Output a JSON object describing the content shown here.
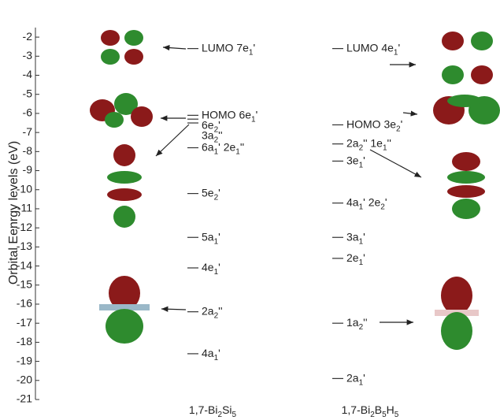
{
  "chart_data": {
    "type": "levels",
    "y_label": "Orbital Eenrgy levels (eV)",
    "ylim": [
      -21,
      -1.5
    ],
    "yticks": [
      -2,
      -3,
      -4,
      -5,
      -6,
      -7,
      -8,
      -9,
      -10,
      -11,
      -12,
      -13,
      -14,
      -15,
      -16,
      -17,
      -18,
      -19,
      -20,
      -21
    ],
    "columns": [
      {
        "name": [
          "1,7-Bi",
          {
            "sub": "2"
          },
          "Si",
          {
            "sub": "5"
          }
        ],
        "levels": [
          {
            "value": -2.6,
            "label": [
              "LUMO 7e",
              {
                "sub": "1"
              },
              "'"
            ]
          },
          {
            "value": -6.1,
            "label": [
              "HOMO 6e",
              {
                "sub": "1"
              },
              "'"
            ]
          },
          {
            "value": -6.3,
            "label": [
              "6e",
              {
                "sub": "2"
              },
              "'"
            ]
          },
          {
            "value": -6.5,
            "label": [
              "3a",
              {
                "sub": "2"
              },
              "''"
            ]
          },
          {
            "value": -7.8,
            "label": [
              "6a",
              {
                "sub": "1"
              },
              "' 2e",
              {
                "sub": "1"
              },
              "''"
            ]
          },
          {
            "value": -10.2,
            "label": [
              "5e",
              {
                "sub": "2"
              },
              "'"
            ]
          },
          {
            "value": -12.5,
            "label": [
              "5a",
              {
                "sub": "1"
              },
              "'"
            ]
          },
          {
            "value": -14.1,
            "label": [
              "4e",
              {
                "sub": "1"
              },
              "'"
            ]
          },
          {
            "value": -16.4,
            "label": [
              "2a",
              {
                "sub": "2"
              },
              "''"
            ]
          },
          {
            "value": -18.6,
            "label": [
              "4a",
              {
                "sub": "1"
              },
              "'"
            ]
          }
        ]
      },
      {
        "name": [
          "1,7-Bi",
          {
            "sub": "2"
          },
          "B",
          {
            "sub": "5"
          },
          "H",
          {
            "sub": "5"
          }
        ],
        "levels": [
          {
            "value": -2.6,
            "label": [
              "LUMO 4e",
              {
                "sub": "1"
              },
              "'"
            ]
          },
          {
            "value": -6.6,
            "label": [
              "HOMO 3e",
              {
                "sub": "2"
              },
              "'"
            ]
          },
          {
            "value": -7.6,
            "label": [
              "2a",
              {
                "sub": "2"
              },
              "'' 1e",
              {
                "sub": "1"
              },
              "''"
            ]
          },
          {
            "value": -8.5,
            "label": [
              "3e",
              {
                "sub": "1"
              },
              "'"
            ]
          },
          {
            "value": -10.7,
            "label": [
              "4a",
              {
                "sub": "1"
              },
              "' 2e",
              {
                "sub": "2"
              },
              "'"
            ]
          },
          {
            "value": -12.5,
            "label": [
              "3a",
              {
                "sub": "1"
              },
              "'"
            ]
          },
          {
            "value": -13.6,
            "label": [
              "2e",
              {
                "sub": "1"
              },
              "'"
            ]
          },
          {
            "value": -17.0,
            "label": [
              "1a",
              {
                "sub": "2"
              },
              "''"
            ]
          },
          {
            "value": -19.9,
            "label": [
              "2a",
              {
                "sub": "1"
              },
              "'"
            ]
          }
        ]
      }
    ]
  }
}
